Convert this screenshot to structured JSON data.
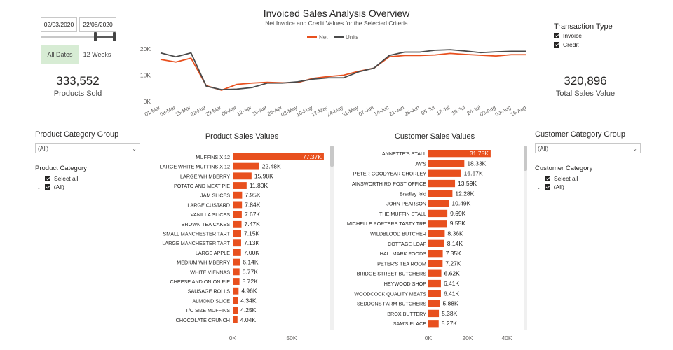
{
  "header": {
    "title": "Invoiced Sales Analysis Overview",
    "subtitle": "Net Invoice and Credit Values for the Selected Criteria"
  },
  "date_filter": {
    "start": "02/03/2020",
    "end": "22/08/2020",
    "tabs": [
      {
        "label": "All Dates",
        "active": true
      },
      {
        "label": "12 Weeks",
        "active": false
      }
    ]
  },
  "kpis": {
    "products_sold": {
      "value": "333,552",
      "label": "Products Sold"
    },
    "total_sales": {
      "value": "320,896",
      "label": "Total Sales Value"
    }
  },
  "transaction_type": {
    "title": "Transaction Type",
    "options": [
      {
        "label": "Invoice",
        "checked": true
      },
      {
        "label": "Credit",
        "checked": true
      }
    ]
  },
  "product_slicers": {
    "group_title": "Product Category Group",
    "group_value": "(All)",
    "category_title": "Product Category",
    "options": [
      {
        "label": "Select all",
        "checked": true
      },
      {
        "label": "(All)",
        "checked": true
      }
    ]
  },
  "customer_slicers": {
    "group_title": "Customer Category Group",
    "group_value": "(All)",
    "category_title": "Customer Category",
    "options": [
      {
        "label": "Select all",
        "checked": true
      },
      {
        "label": "(All)",
        "checked": true
      }
    ]
  },
  "colors": {
    "net": "#e8501e",
    "units": "#4a4a4a",
    "bar": "#e8501e",
    "active_tab": "#d7ecd4"
  },
  "chart_data": [
    {
      "type": "line",
      "title": "Invoiced Sales Analysis Overview",
      "subtitle": "Net Invoice and Credit Values for the Selected Criteria",
      "x": [
        "01-Mar",
        "08-Mar",
        "15-Mar",
        "22-Mar",
        "29-Mar",
        "05-Apr",
        "12-Apr",
        "19-Apr",
        "26-Apr",
        "03-May",
        "10-May",
        "17-May",
        "24-May",
        "31-May",
        "07-Jun",
        "14-Jun",
        "21-Jun",
        "28-Jun",
        "05-Jul",
        "12-Jul",
        "19-Jul",
        "26-Jul",
        "02-Aug",
        "09-Aug",
        "16-Aug"
      ],
      "series": [
        {
          "name": "Net",
          "values": [
            16000,
            15000,
            16500,
            6000,
            4300,
            6500,
            7000,
            7300,
            7100,
            7200,
            8800,
            9500,
            10000,
            11500,
            12700,
            17000,
            17500,
            17500,
            17700,
            18300,
            17900,
            17600,
            17300,
            17800,
            17800
          ]
        },
        {
          "name": "Units",
          "values": [
            18500,
            17000,
            18500,
            5800,
            4500,
            4700,
            5300,
            7000,
            7000,
            7500,
            8500,
            9000,
            9000,
            11300,
            12700,
            17500,
            18800,
            18800,
            19500,
            19700,
            19200,
            18600,
            18900,
            19100,
            19100
          ]
        }
      ],
      "ylim": [
        0,
        20000
      ],
      "yticks": [
        0,
        10000,
        20000
      ],
      "ytick_labels": [
        "0K",
        "10K",
        "20K"
      ],
      "legend": "top-center",
      "grid": false
    },
    {
      "type": "bar",
      "title": "Product Sales Values",
      "orientation": "horizontal",
      "categories": [
        "MUFFINS X 12",
        "LARGE WHITE MUFFINS X 12",
        "LARGE WHIMBERRY",
        "POTATO AND MEAT PIE",
        "JAM SLICES",
        "LARGE CUSTARD",
        "VANILLA SLICES",
        "BROWN TEA CAKES",
        "SMALL MANCHESTER TART",
        "LARGE MANCHESTER TART",
        "LARGE APPLE",
        "MEDIUM WHIMBERRY",
        "WHITE VIENNAS",
        "CHEESE AND ONION PIE",
        "SAUSAGE ROLLS",
        "ALMOND SLICE",
        "T/C SIZE MUFFINS",
        "CHOCOLATE CRUNCH"
      ],
      "values": [
        77370,
        22480,
        15980,
        11800,
        7950,
        7840,
        7670,
        7470,
        7150,
        7130,
        7000,
        6140,
        5770,
        5720,
        4960,
        4340,
        4250,
        4040
      ],
      "labels": [
        "77.37K",
        "22.48K",
        "15.98K",
        "11.80K",
        "7.95K",
        "7.84K",
        "7.67K",
        "7.47K",
        "7.15K",
        "7.13K",
        "7.00K",
        "6.14K",
        "5.77K",
        "5.72K",
        "4.96K",
        "4.34K",
        "4.25K",
        "4.04K"
      ],
      "xlim": [
        0,
        78000
      ],
      "xticks": [
        0,
        50000
      ],
      "xtick_labels": [
        "0K",
        "50K"
      ]
    },
    {
      "type": "bar",
      "title": "Customer Sales Values",
      "orientation": "horizontal",
      "categories": [
        "ANNETTE'S STALL",
        "JW'S",
        "PETER GOODYEAR CHORLEY",
        "AINSWORTH RD POST OFFICE",
        "Bradley fold",
        "JOHN PEARSON",
        "THE MUFFIN STALL",
        "MICHELLE PORTERS TASTY TRE",
        "WILDBLOOD BUTCHER",
        "COTTAGE LOAF",
        "HALLMARK FOODS",
        "PETER'S TEA ROOM",
        "BRIDGE STREET BUTCHERS",
        "HEYWOOD SHOP",
        "WOODCOCK QUALITY MEATS",
        "SEDDONS FARM BUTCHERS",
        "BROX BUTTERY",
        "SAM'S PLACE"
      ],
      "values": [
        31750,
        18330,
        16670,
        13590,
        12280,
        10490,
        9690,
        9550,
        8360,
        8140,
        7350,
        7270,
        6620,
        6410,
        6410,
        5880,
        5380,
        5270
      ],
      "labels": [
        "31.75K",
        "18.33K",
        "16.67K",
        "13.59K",
        "12.28K",
        "10.49K",
        "9.69K",
        "9.55K",
        "8.36K",
        "8.14K",
        "7.35K",
        "7.27K",
        "6.62K",
        "6.41K",
        "6.41K",
        "5.88K",
        "5.38K",
        "5.27K"
      ],
      "xlim": [
        0,
        40000
      ],
      "xticks": [
        0,
        20000,
        40000
      ],
      "xtick_labels": [
        "0K",
        "20K",
        "40K"
      ]
    }
  ]
}
